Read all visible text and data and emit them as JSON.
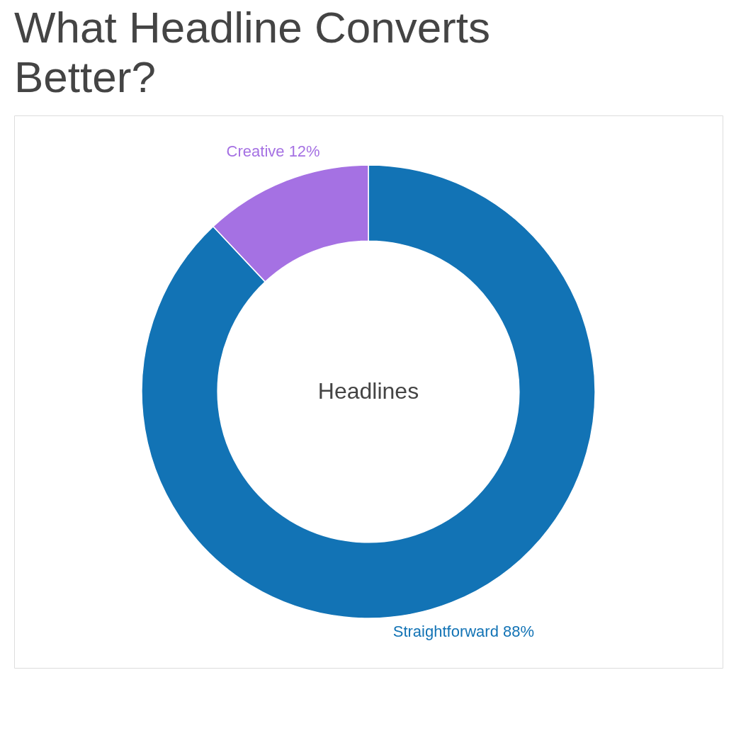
{
  "chart_data": {
    "type": "donut",
    "title": "What Headline Converts Better?",
    "categories": [
      "Straightforward",
      "Creative"
    ],
    "values": [
      88,
      12
    ],
    "value_labels": [
      "88%",
      "12%"
    ],
    "colors": [
      "#1273b5",
      "#a571e3"
    ],
    "annotations": [
      "Headlines"
    ],
    "legend": false
  }
}
